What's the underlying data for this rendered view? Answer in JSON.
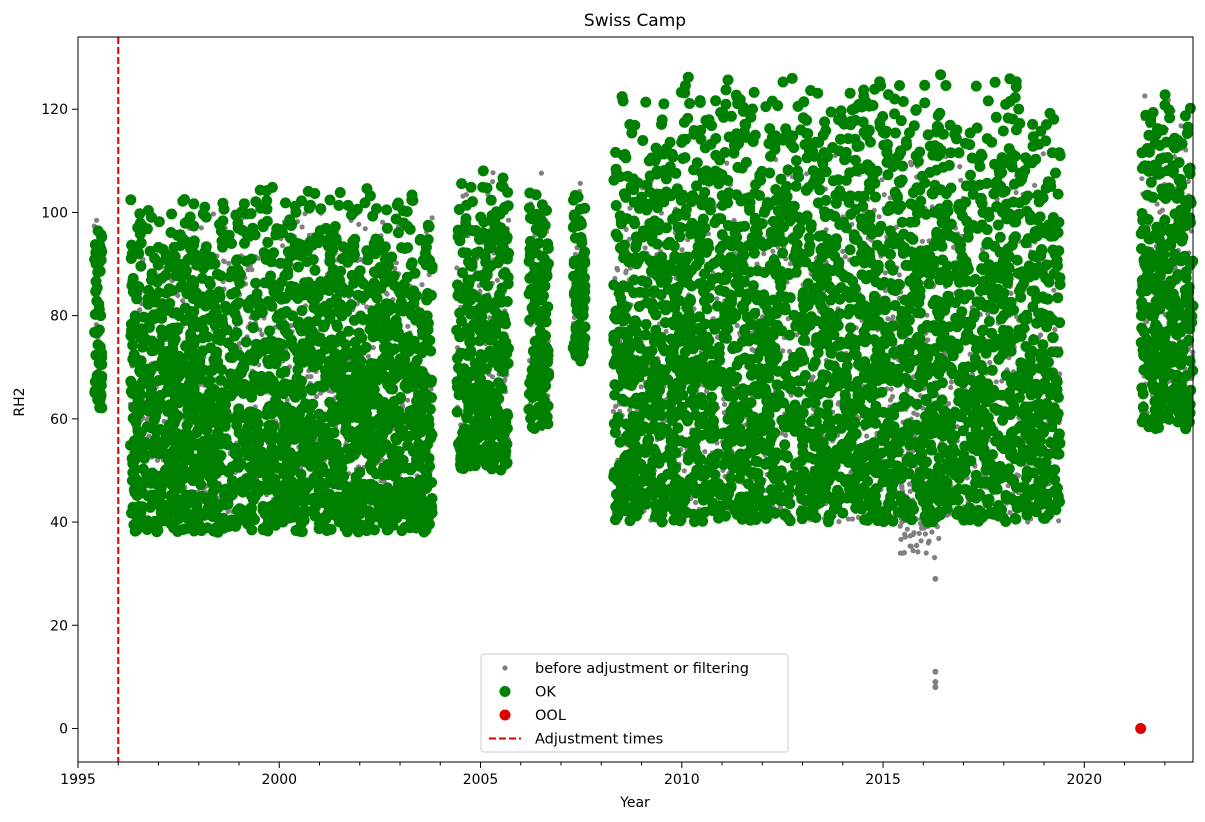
{
  "chart_data": {
    "type": "scatter",
    "title": "Swiss Camp",
    "xlabel": "Year",
    "ylabel": "RH2",
    "xlim": [
      1995.0,
      2022.7
    ],
    "ylim": [
      -6.5,
      134
    ],
    "x_ticks": [
      1995,
      2000,
      2005,
      2010,
      2015,
      2020
    ],
    "y_ticks": [
      0,
      20,
      40,
      60,
      80,
      100,
      120
    ],
    "grid": false,
    "legend_position": "bottom-center",
    "colors": {
      "before": "#808080",
      "ok": "#008000",
      "ool": "#e00000",
      "adjust": "#e00000"
    },
    "series": [
      {
        "name": "before adjustment or filtering",
        "marker": "small-dot",
        "segments": [
          {
            "x": [
              1995.4,
              1995.6
            ],
            "y": [
              62,
              100
            ]
          },
          {
            "x": [
              1996.3,
              2003.8
            ],
            "y": [
              42,
              100.5
            ]
          },
          {
            "x": [
              2004.4,
              2005.7
            ],
            "y": [
              52,
              110
            ]
          },
          {
            "x": [
              2006.2,
              2006.7
            ],
            "y": [
              58,
              109
            ]
          },
          {
            "x": [
              2007.3,
              2007.6
            ],
            "y": [
              71,
              107
            ]
          },
          {
            "x": [
              2008.3,
              2019.4
            ],
            "y": [
              40,
              112
            ]
          },
          {
            "x": [
              2015.4,
              2016.4
            ],
            "y": [
              33,
              70
            ]
          },
          {
            "x": [
              2021.4,
              2022.7
            ],
            "y": [
              58,
              123
            ]
          }
        ],
        "points": [
          {
            "x": 2016.3,
            "y": 29
          },
          {
            "x": 2016.3,
            "y": 11
          },
          {
            "x": 2016.3,
            "y": 9
          },
          {
            "x": 2016.3,
            "y": 8
          }
        ]
      },
      {
        "name": "OK",
        "marker": "large-dot",
        "segments": [
          {
            "x": [
              1995.4,
              1995.6
            ],
            "y": [
              62,
              100
            ]
          },
          {
            "x": [
              1996.3,
              2003.8
            ],
            "y": [
              38,
              105
            ]
          },
          {
            "x": [
              2004.4,
              2005.7
            ],
            "y": [
              50,
              110
            ]
          },
          {
            "x": [
              2006.2,
              2006.7
            ],
            "y": [
              58,
              107
            ]
          },
          {
            "x": [
              2007.3,
              2007.6
            ],
            "y": [
              71,
              106
            ]
          },
          {
            "x": [
              2008.3,
              2019.4
            ],
            "y": [
              40,
              127
            ]
          },
          {
            "x": [
              2021.4,
              2022.7
            ],
            "y": [
              58,
              123
            ]
          }
        ]
      },
      {
        "name": "OOL",
        "marker": "large-dot",
        "points": [
          {
            "x": 2021.4,
            "y": 0
          }
        ]
      },
      {
        "name": "Adjustment times",
        "marker": "dashed-vertical-line",
        "x": [
          1996.0
        ]
      }
    ]
  }
}
